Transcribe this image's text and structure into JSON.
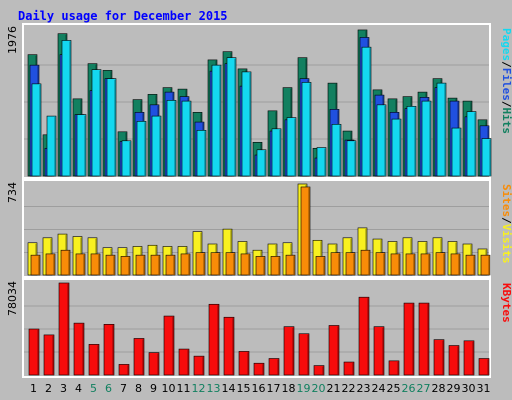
{
  "chart_data": {
    "type": "bar",
    "title": "Daily usage for December 2015",
    "categories": [
      "1",
      "2",
      "3",
      "4",
      "5",
      "6",
      "7",
      "8",
      "9",
      "10",
      "11",
      "12",
      "13",
      "14",
      "15",
      "16",
      "17",
      "18",
      "19",
      "20",
      "21",
      "22",
      "23",
      "24",
      "25",
      "26",
      "27",
      "28",
      "29",
      "30",
      "31"
    ],
    "weekend_days": [
      "5",
      "6",
      "12",
      "13",
      "19",
      "20",
      "26",
      "27"
    ],
    "panels": [
      {
        "name": "pages_files_hits",
        "max_label": "1976",
        "ymax": 1976,
        "legend": [
          "Pages",
          "/",
          "Files",
          "/",
          "Hits"
        ],
        "series": [
          {
            "name": "Hits",
            "color": "#128060",
            "values": [
              1620,
              550,
              1900,
              1030,
              1500,
              1410,
              590,
              1020,
              1090,
              1180,
              1160,
              850,
              1550,
              1660,
              1430,
              450,
              870,
              1180,
              1580,
              370,
              1240,
              600,
              1950,
              1150,
              1030,
              1060,
              1120,
              1300,
              1040,
              1000,
              750
            ]
          },
          {
            "name": "Files",
            "color": "#2050e0",
            "values": [
              1480,
              370,
              1620,
              820,
              1140,
              1300,
              460,
              850,
              950,
              1120,
              1060,
              720,
              1400,
              1500,
              1200,
              280,
              600,
              750,
              1300,
              240,
              890,
              480,
              1850,
              1080,
              850,
              900,
              1050,
              1180,
              1000,
              790,
              670
            ]
          },
          {
            "name": "Pages",
            "color": "#14d8f0",
            "values": [
              1230,
              800,
              1810,
              820,
              1420,
              1300,
              470,
              730,
              800,
              1010,
              1000,
              610,
              1480,
              1580,
              1390,
              350,
              630,
              780,
              1250,
              380,
              690,
              470,
              1720,
              950,
              760,
              930,
              1000,
              1240,
              640,
              860,
              500
            ]
          }
        ]
      },
      {
        "name": "visits_sites",
        "max_label": "734",
        "ymax": 734,
        "legend": [
          "Sites",
          "/",
          "Visits"
        ],
        "series": [
          {
            "name": "Visits",
            "color": "#f8f020",
            "values": [
              260,
              300,
              330,
              310,
              300,
              220,
              220,
              230,
              240,
              230,
              230,
              350,
              250,
              370,
              270,
              200,
              250,
              260,
              734,
              280,
              250,
              300,
              380,
              290,
              270,
              300,
              270,
              300,
              270,
              250,
              210
            ]
          },
          {
            "name": "Sites",
            "color": "#f88c08",
            "values": [
              160,
              170,
              200,
              170,
              170,
              160,
              150,
              160,
              160,
              160,
              170,
              180,
              180,
              180,
              170,
              150,
              150,
              160,
              710,
              150,
              180,
              180,
              200,
              180,
              170,
              170,
              170,
              180,
              170,
              160,
              160
            ]
          }
        ]
      },
      {
        "name": "kbytes",
        "max_label": "78034",
        "ymax": 78034,
        "legend": [
          "KBytes"
        ],
        "series": [
          {
            "name": "KBytes",
            "color": "#f80c0c",
            "values": [
              39000,
              34000,
              78034,
              44000,
              26000,
              43000,
              9000,
              31000,
              19000,
              50000,
              22000,
              16000,
              60000,
              49000,
              20000,
              10000,
              14000,
              41000,
              35000,
              8000,
              42000,
              11000,
              66000,
              41000,
              12000,
              61000,
              61000,
              30000,
              25000,
              29000,
              14000
            ]
          }
        ]
      }
    ],
    "colors": {
      "background": "#bcbcbc",
      "frame": "#ffffff",
      "title": "#0000ff",
      "weekday_label": "#000000",
      "weekend_label": "#128060",
      "grid": "#808080"
    }
  }
}
